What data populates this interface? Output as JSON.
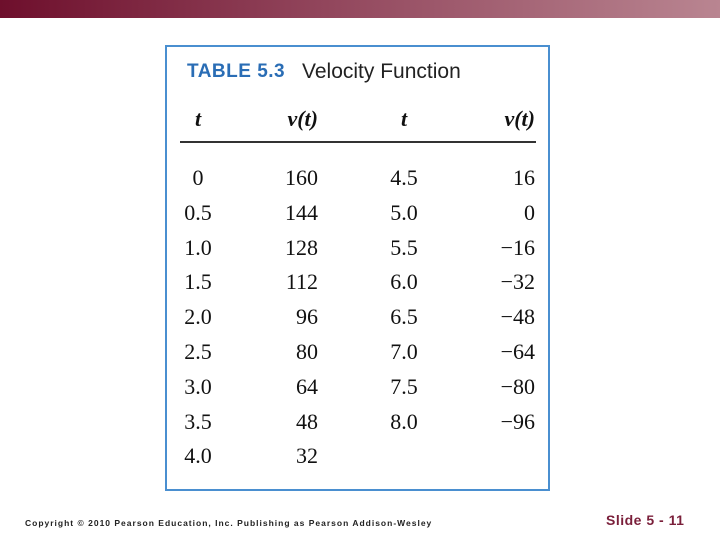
{
  "table": {
    "label": "TABLE 5.3",
    "title": "Velocity Function",
    "header": [
      "t",
      "v(t)",
      "t",
      "v(t)"
    ],
    "rows": [
      [
        "0",
        "160",
        "4.5",
        "16"
      ],
      [
        "0.5",
        "144",
        "5.0",
        "0"
      ],
      [
        "1.0",
        "128",
        "5.5",
        "−16"
      ],
      [
        "1.5",
        "112",
        "6.0",
        "−32"
      ],
      [
        "2.0",
        "96",
        "6.5",
        "−48"
      ],
      [
        "2.5",
        "80",
        "7.0",
        "−64"
      ],
      [
        "3.0",
        "64",
        "7.5",
        "−80"
      ],
      [
        "3.5",
        "48",
        "8.0",
        "−96"
      ],
      [
        "4.0",
        "32"
      ]
    ]
  },
  "footer": {
    "copyright": "Copyright © 2010 Pearson Education, Inc. Publishing as Pearson Addison-Wesley",
    "slide": "Slide 5 - 11"
  }
}
